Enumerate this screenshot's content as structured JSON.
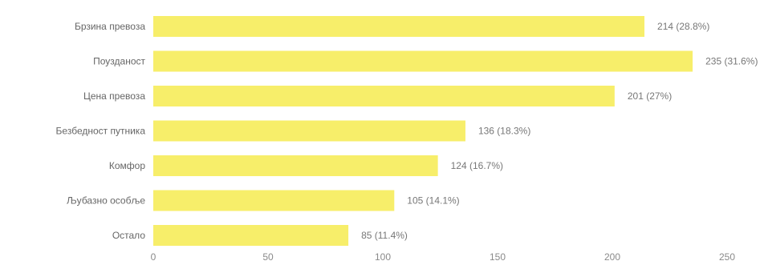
{
  "chart_data": {
    "type": "bar",
    "orientation": "horizontal",
    "categories": [
      "Брзина превоза",
      "Поузданост",
      "Цена превоза",
      "Безбедност путника",
      "Комфор",
      "Љубазно особље",
      "Остало"
    ],
    "values": [
      214,
      235,
      201,
      136,
      124,
      105,
      85
    ],
    "value_labels": [
      "214 (28.8%)",
      "235 (31.6%)",
      "201 (27%)",
      "136 (18.3%)",
      "124 (16.7%)",
      "105 (14.1%)",
      "85 (11.4%)"
    ],
    "xlim": [
      0,
      250
    ],
    "x_ticks": [
      0,
      50,
      100,
      150,
      200,
      250
    ],
    "x_tick_labels": [
      "0",
      "50",
      "100",
      "150",
      "200",
      "250"
    ],
    "grid": false,
    "legend": "none",
    "colors": {
      "bar": "#f7ee6a",
      "category_text": "#666666",
      "value_text": "#777777",
      "tick_text": "#8a8a8a",
      "axis_line": "#dddddd"
    }
  }
}
